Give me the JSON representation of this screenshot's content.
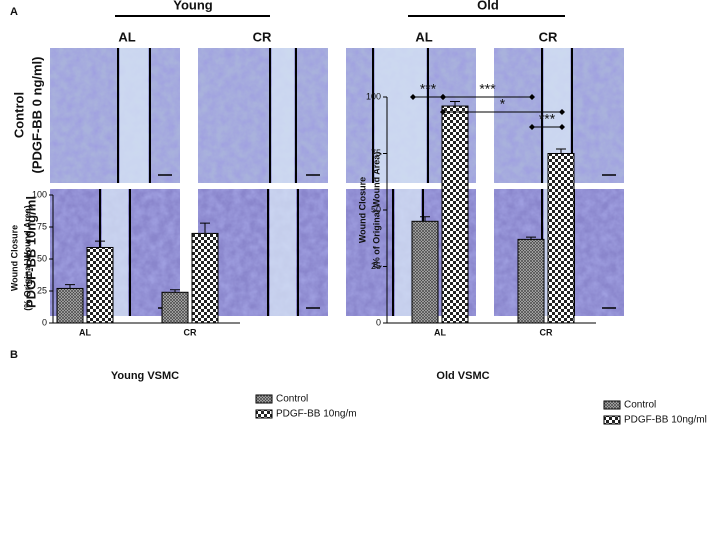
{
  "panel_a": {
    "label": "A",
    "groups": [
      "Young",
      "Old"
    ],
    "columns": [
      "AL",
      "CR",
      "AL",
      "CR"
    ],
    "rows": [
      [
        "Control",
        "(PDGF-BB  0 ng/ml)"
      ],
      [
        "PDGF-BB  10ng/ml"
      ]
    ]
  },
  "panel_b": {
    "label": "B"
  },
  "chart_data": [
    {
      "type": "bar",
      "title": "Young VSMC",
      "y_label": [
        "Wound Closure",
        "(% Original Wound Area)"
      ],
      "categories": [
        "AL",
        "CR"
      ],
      "series": [
        {
          "name": "Control",
          "values": [
            27,
            24
          ],
          "errors": [
            3,
            2
          ]
        },
        {
          "name": "PDGF-BB 10ng/m",
          "values": [
            59,
            70
          ],
          "errors": [
            5,
            8
          ]
        }
      ],
      "ylim": [
        0,
        100
      ],
      "yticks": [
        0,
        25,
        50,
        75,
        100
      ]
    },
    {
      "type": "bar",
      "title": "Old VSMC",
      "y_label": [
        "Wound Closure",
        "(% of Original Wound Area)"
      ],
      "categories": [
        "AL",
        "CR"
      ],
      "series": [
        {
          "name": "Control",
          "values": [
            45,
            37
          ],
          "errors": [
            2,
            1
          ]
        },
        {
          "name": "PDGF-BB 10ng/ml",
          "values": [
            96,
            75
          ],
          "errors": [
            2,
            2
          ]
        }
      ],
      "ylim": [
        0,
        100
      ],
      "yticks": [
        0,
        25,
        50,
        75,
        100
      ],
      "annotations": [
        "***",
        "***",
        "*",
        "***"
      ]
    }
  ]
}
